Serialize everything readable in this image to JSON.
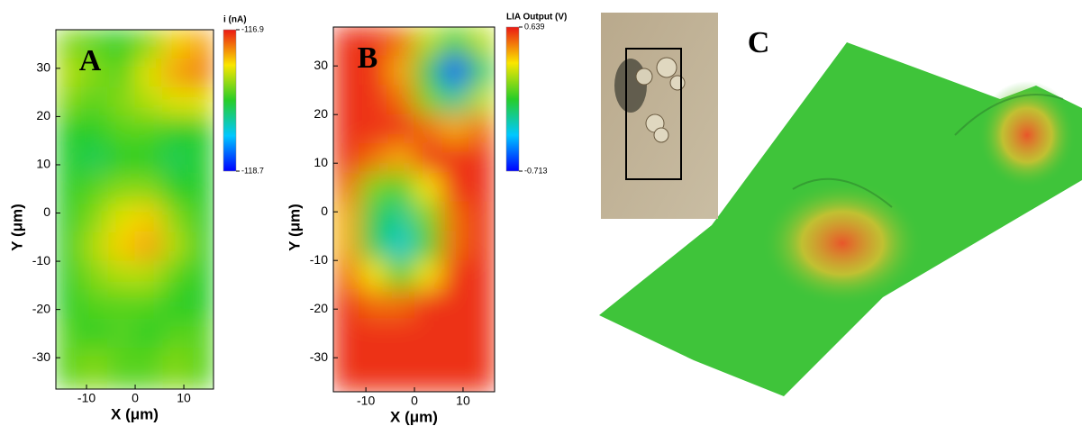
{
  "chart_data": [
    {
      "type": "heatmap",
      "panel_label": "A",
      "xlabel": "X (μm)",
      "ylabel": "Y (μm)",
      "colorbar_label": "i (nA)",
      "xlim": [
        -16.3,
        16.1
      ],
      "ylim": [
        -36.5,
        38
      ],
      "xticks": [
        -10,
        0,
        10
      ],
      "yticks": [
        -30,
        -20,
        -10,
        0,
        10,
        20,
        30
      ],
      "clim": [
        -118.7,
        -116.9
      ],
      "cticks": [
        -118.7,
        -116.9
      ],
      "x": [
        -14,
        -8.4,
        -2.8,
        2.8,
        8.4,
        14
      ],
      "y": [
        35,
        29,
        23,
        17,
        11,
        5,
        -1,
        -7,
        -13,
        -19,
        -25,
        -31
      ],
      "z": [
        [
          -117.6,
          -117.7,
          -117.8,
          -117.6,
          -117.3,
          -117.2
        ],
        [
          -117.5,
          -117.6,
          -117.7,
          -117.4,
          -117.2,
          -117.1
        ],
        [
          -117.6,
          -117.7,
          -117.6,
          -117.5,
          -117.4,
          -117.4
        ],
        [
          -117.8,
          -117.8,
          -117.7,
          -117.7,
          -117.8,
          -117.8
        ],
        [
          -117.8,
          -117.9,
          -117.8,
          -117.8,
          -117.9,
          -117.8
        ],
        [
          -117.8,
          -117.7,
          -117.6,
          -117.6,
          -117.8,
          -117.8
        ],
        [
          -117.8,
          -117.6,
          -117.4,
          -117.3,
          -117.6,
          -117.8
        ],
        [
          -117.8,
          -117.5,
          -117.3,
          -117.2,
          -117.5,
          -117.8
        ],
        [
          -117.8,
          -117.6,
          -117.5,
          -117.5,
          -117.7,
          -117.8
        ],
        [
          -117.8,
          -117.7,
          -117.7,
          -117.7,
          -117.8,
          -117.8
        ],
        [
          -117.7,
          -117.8,
          -117.7,
          -117.8,
          -117.7,
          -117.7
        ],
        [
          -117.7,
          -117.6,
          -117.7,
          -117.7,
          -117.6,
          -117.7
        ]
      ]
    },
    {
      "type": "heatmap",
      "panel_label": "B",
      "xlabel": "X (μm)",
      "ylabel": "Y (μm)",
      "colorbar_label": "LIA Output (V)",
      "xlim": [
        -16.7,
        16.5
      ],
      "ylim": [
        -37,
        38
      ],
      "xticks": [
        -10,
        0,
        10
      ],
      "yticks": [
        -30,
        -20,
        -10,
        0,
        10,
        20,
        30
      ],
      "clim": [
        -0.713,
        0.639
      ],
      "cticks": [
        -0.713,
        0.639
      ],
      "x": [
        -14,
        -8.4,
        -2.8,
        2.8,
        8.4,
        14
      ],
      "y": [
        35,
        29,
        23,
        17,
        11,
        5,
        -1,
        -7,
        -13,
        -19,
        -25,
        -31
      ],
      "z": [
        [
          0.6,
          0.6,
          0.5,
          0.2,
          0.0,
          0.2
        ],
        [
          0.6,
          0.6,
          0.4,
          -0.1,
          -0.6,
          -0.1
        ],
        [
          0.6,
          0.6,
          0.5,
          0.1,
          -0.2,
          0.2
        ],
        [
          0.6,
          0.6,
          0.6,
          0.5,
          0.4,
          0.5
        ],
        [
          0.6,
          0.5,
          0.4,
          0.6,
          0.6,
          0.6
        ],
        [
          0.5,
          0.1,
          0.0,
          0.3,
          0.6,
          0.6
        ],
        [
          0.4,
          -0.1,
          -0.2,
          0.1,
          0.5,
          0.6
        ],
        [
          0.4,
          -0.1,
          -0.3,
          0.0,
          0.5,
          0.6
        ],
        [
          0.5,
          0.3,
          0.0,
          0.3,
          0.6,
          0.6
        ],
        [
          0.6,
          0.5,
          0.5,
          0.6,
          0.6,
          0.6
        ],
        [
          0.6,
          0.6,
          0.6,
          0.6,
          0.6,
          0.6
        ],
        [
          0.6,
          0.6,
          0.6,
          0.6,
          0.6,
          0.6
        ]
      ]
    }
  ],
  "panel_c": {
    "label": "C"
  }
}
